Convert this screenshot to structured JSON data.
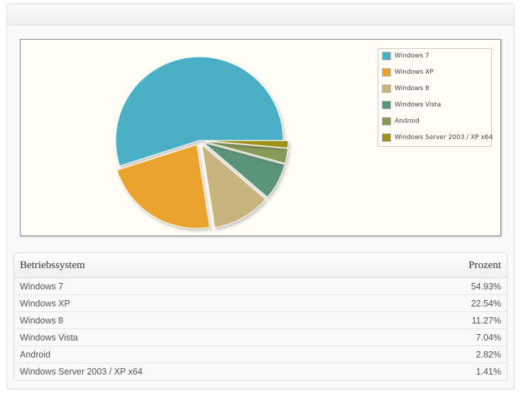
{
  "chart_data": {
    "type": "pie",
    "categories": [
      "Windows 7",
      "Windows XP",
      "Windows 8",
      "Windows Vista",
      "Android",
      "Windows Server 2003 / XP x64"
    ],
    "values": [
      54.93,
      22.54,
      11.27,
      7.04,
      2.82,
      1.41
    ],
    "colors": [
      "#4cb0c6",
      "#e9a32d",
      "#c8b47f",
      "#5c947a",
      "#869a5a",
      "#a0901c"
    ],
    "legend_position": "top-right",
    "exploded": true
  },
  "table": {
    "header": {
      "os": "Betriebssystem",
      "percent": "Prozent"
    },
    "rows": [
      {
        "os": "Windows 7",
        "percent": "54.93%"
      },
      {
        "os": "Windows XP",
        "percent": "22.54%"
      },
      {
        "os": "Windows 8",
        "percent": "11.27%"
      },
      {
        "os": "Windows Vista",
        "percent": "7.04%"
      },
      {
        "os": "Android",
        "percent": "2.82%"
      },
      {
        "os": "Windows Server 2003 / XP x64",
        "percent": "1.41%"
      }
    ]
  }
}
